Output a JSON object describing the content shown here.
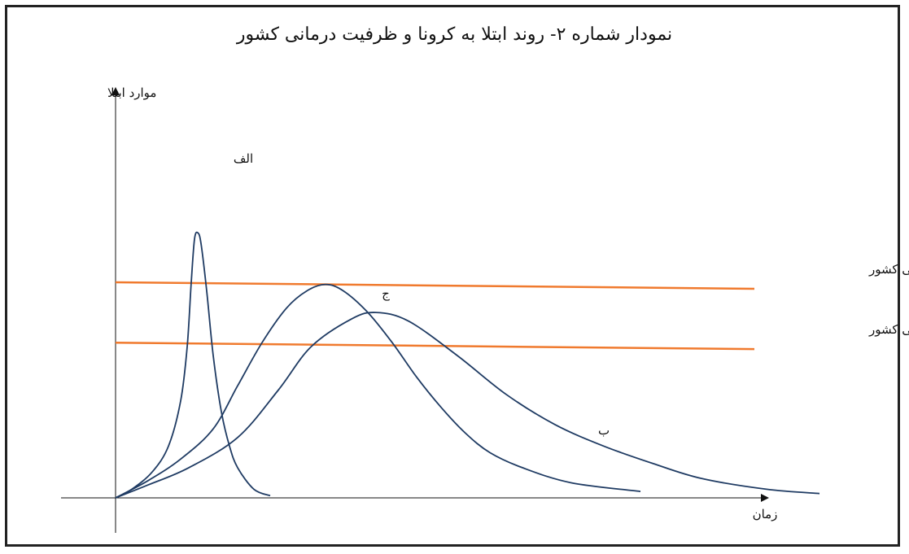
{
  "chart_data": {
    "type": "line",
    "title": "نمودار شماره ۲- روند ابتلا به کرونا و ظرفیت درمانی کشور",
    "ylabel": "موارد ابتلا",
    "xlabel": "زمان",
    "grid": false,
    "series": [
      {
        "name": "الف",
        "color": "#1f3b63",
        "points": [
          [
            0,
            0
          ],
          [
            20,
            4
          ],
          [
            45,
            12
          ],
          [
            65,
            24
          ],
          [
            80,
            45
          ],
          [
            88,
            70
          ],
          [
            93,
            100
          ],
          [
            97,
            120
          ],
          [
            101,
            123
          ],
          [
            105,
            118
          ],
          [
            112,
            96
          ],
          [
            120,
            66
          ],
          [
            130,
            40
          ],
          [
            140,
            24
          ],
          [
            150,
            14
          ],
          [
            170,
            4
          ],
          [
            190,
            1
          ]
        ]
      },
      {
        "name": "ب",
        "color": "#1f3b63",
        "points": [
          [
            0,
            0
          ],
          [
            40,
            6
          ],
          [
            90,
            14
          ],
          [
            150,
            28
          ],
          [
            200,
            50
          ],
          [
            240,
            70
          ],
          [
            290,
            83
          ],
          [
            320,
            86
          ],
          [
            360,
            82
          ],
          [
            420,
            66
          ],
          [
            480,
            48
          ],
          [
            540,
            34
          ],
          [
            600,
            24
          ],
          [
            660,
            16
          ],
          [
            720,
            9
          ],
          [
            800,
            4
          ],
          [
            865,
            2
          ]
        ]
      },
      {
        "name": "ج",
        "color": "#1f3b63",
        "points": [
          [
            0,
            0
          ],
          [
            40,
            8
          ],
          [
            80,
            18
          ],
          [
            120,
            32
          ],
          [
            150,
            52
          ],
          [
            180,
            72
          ],
          [
            210,
            88
          ],
          [
            235,
            96
          ],
          [
            258,
            99
          ],
          [
            280,
            96
          ],
          [
            310,
            86
          ],
          [
            340,
            72
          ],
          [
            370,
            56
          ],
          [
            400,
            42
          ],
          [
            430,
            30
          ],
          [
            460,
            21
          ],
          [
            500,
            14
          ],
          [
            560,
            7
          ],
          [
            645,
            3
          ]
        ]
      }
    ],
    "capacity_lines": [
      {
        "label": "بهبود ظرفیت بهداشتی و درمانی کشور",
        "color": "#f07a2e",
        "y_start": 100,
        "y_end": 97,
        "x_start": 0,
        "x_end": 785
      },
      {
        "label": "ظرفیت بهداشتی و درمانی کشور",
        "color": "#f07a2e",
        "y_start": 72,
        "y_end": 69,
        "x_start": 0,
        "x_end": 785
      }
    ],
    "xlim": [
      0,
      870
    ],
    "ylim": [
      0,
      145
    ]
  }
}
